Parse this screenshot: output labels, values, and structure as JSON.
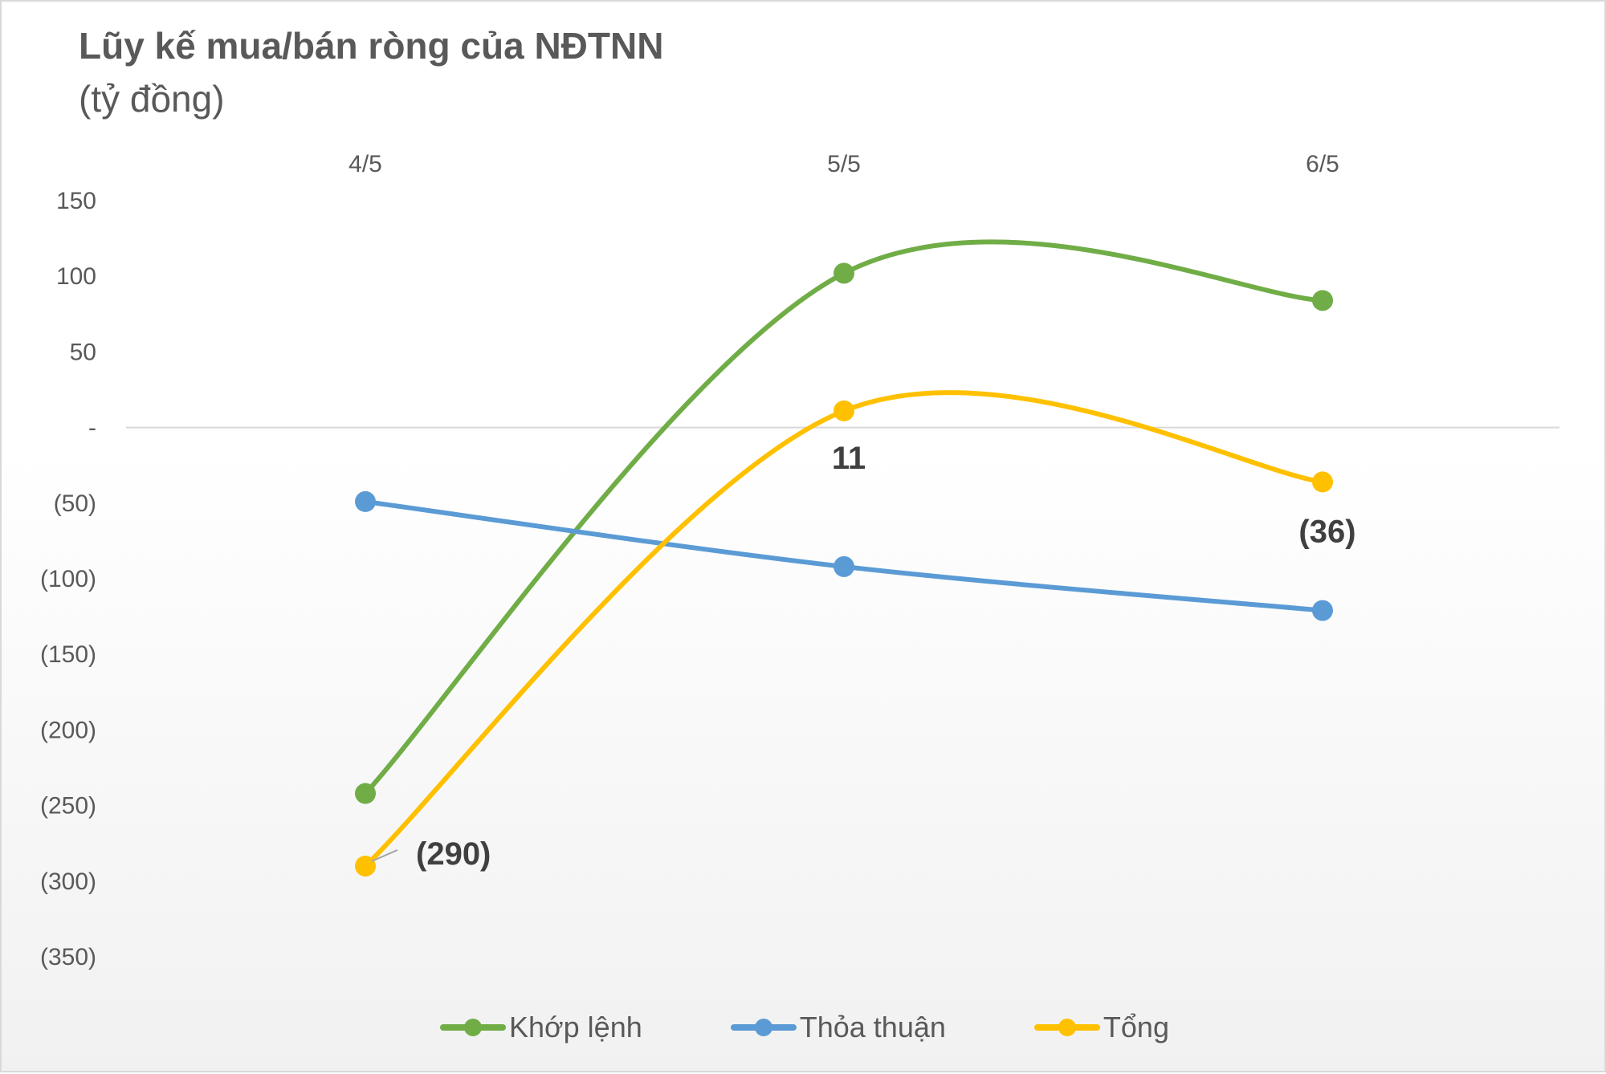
{
  "chart_title": "Lũy kế mua/bán ròng của NĐTNN",
  "chart_subtitle": "(tỷ đồng)",
  "chart_data": {
    "type": "line",
    "title": "Lũy kế mua/bán ròng của NĐTNN",
    "subtitle": "(tỷ đồng)",
    "categories": [
      "4/5",
      "5/5",
      "6/5"
    ],
    "ylim": [
      -350,
      150
    ],
    "yticks": [
      150,
      100,
      50,
      0,
      -50,
      -100,
      -150,
      -200,
      -250,
      -300,
      -350
    ],
    "ytick_labels": [
      "150",
      "100",
      "50",
      "-",
      "(50)",
      "(100)",
      "(150)",
      "(200)",
      "(250)",
      "(300)",
      "(350)"
    ],
    "xaxis_position": "top",
    "smooth": true,
    "grid": false,
    "legend_position": "bottom",
    "series": [
      {
        "name": "Khớp lệnh",
        "color": "#70ad47",
        "values": [
          -242,
          102,
          84
        ]
      },
      {
        "name": "Thỏa thuận",
        "color": "#5b9bd5",
        "values": [
          -49,
          -92,
          -121
        ]
      },
      {
        "name": "Tổng",
        "color": "#ffc000",
        "values": [
          -290,
          11,
          -36
        ]
      }
    ],
    "data_labels": [
      {
        "series": "Tổng",
        "index": 0,
        "text": "(290)"
      },
      {
        "series": "Tổng",
        "index": 1,
        "text": "11"
      },
      {
        "series": "Tổng",
        "index": 2,
        "text": "(36)"
      }
    ]
  }
}
